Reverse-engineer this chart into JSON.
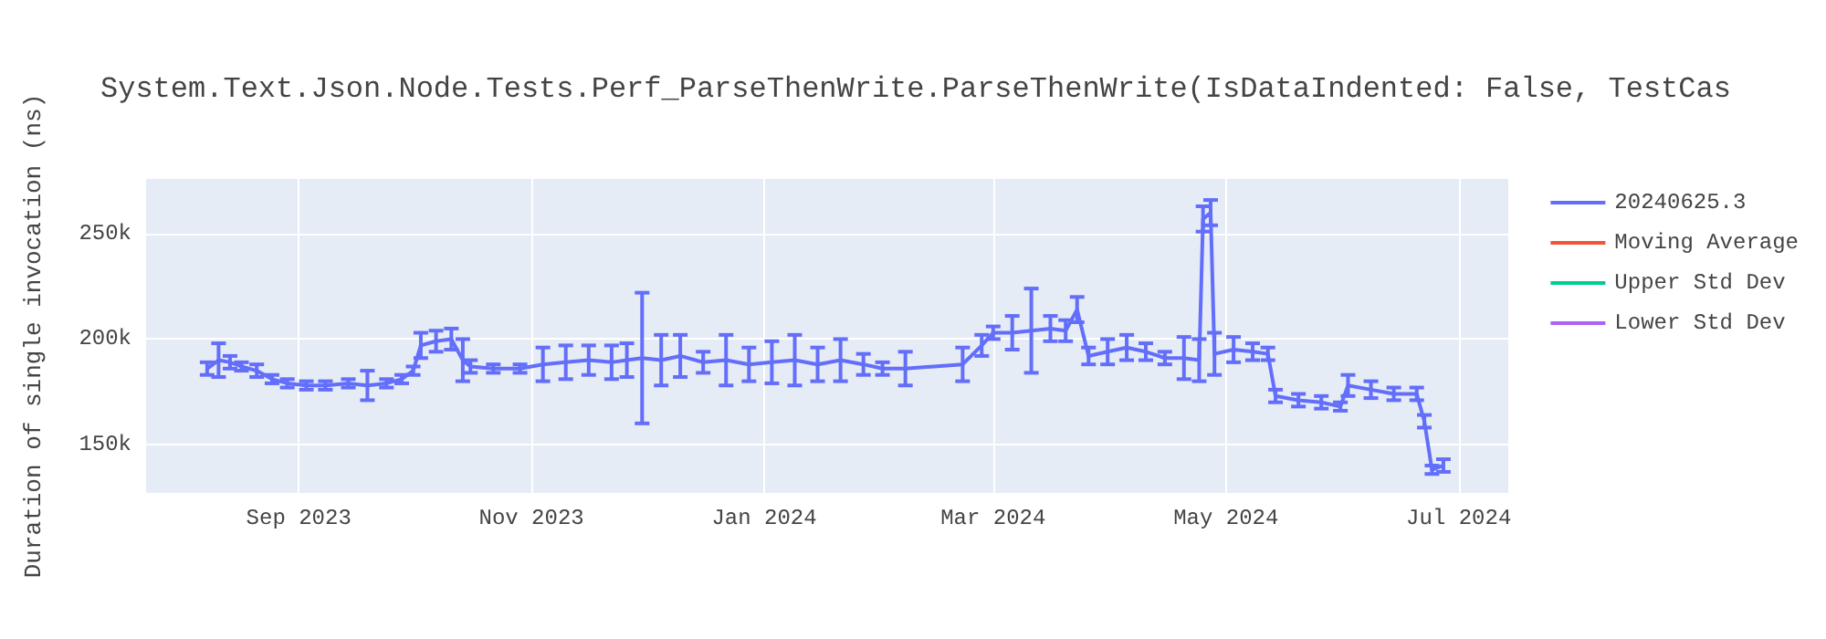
{
  "chart_data": {
    "type": "line",
    "title": "System.Text.Json.Node.Tests.Perf_ParseThenWrite.ParseThenWrite(IsDataIndented: False, TestCas",
    "ylabel": "Duration of single invocation (ns)",
    "x": [
      "2023-08-08",
      "2023-08-11",
      "2023-08-14",
      "2023-08-17",
      "2023-08-21",
      "2023-08-25",
      "2023-08-29",
      "2023-09-03",
      "2023-09-08",
      "2023-09-14",
      "2023-09-19",
      "2023-09-24",
      "2023-09-28",
      "2023-10-01",
      "2023-10-03",
      "2023-10-07",
      "2023-10-11",
      "2023-10-14",
      "2023-10-16",
      "2023-10-22",
      "2023-10-29",
      "2023-11-04",
      "2023-11-10",
      "2023-11-16",
      "2023-11-22",
      "2023-11-26",
      "2023-11-30",
      "2023-12-05",
      "2023-12-10",
      "2023-12-16",
      "2023-12-22",
      "2023-12-28",
      "2024-01-03",
      "2024-01-09",
      "2024-01-15",
      "2024-01-21",
      "2024-01-27",
      "2024-02-01",
      "2024-02-07",
      "2024-02-22",
      "2024-02-27",
      "2024-03-01",
      "2024-03-06",
      "2024-03-11",
      "2024-03-16",
      "2024-03-20",
      "2024-03-23",
      "2024-03-26",
      "2024-03-31",
      "2024-04-05",
      "2024-04-10",
      "2024-04-15",
      "2024-04-20",
      "2024-04-24",
      "2024-04-25",
      "2024-04-27",
      "2024-04-28",
      "2024-05-03",
      "2024-05-08",
      "2024-05-12",
      "2024-05-14",
      "2024-05-20",
      "2024-05-26",
      "2024-05-31",
      "2024-06-02",
      "2024-06-08",
      "2024-06-14",
      "2024-06-20",
      "2024-06-22",
      "2024-06-24",
      "2024-06-27"
    ],
    "series": [
      {
        "name": "20240625.3",
        "color": "#636efa",
        "values": [
          186000,
          190000,
          189000,
          187000,
          185000,
          181000,
          179000,
          178000,
          178000,
          179000,
          178000,
          179000,
          181000,
          185000,
          197000,
          199000,
          200000,
          190000,
          187000,
          186000,
          186000,
          188000,
          189000,
          190000,
          189000,
          190000,
          191000,
          190000,
          192000,
          189000,
          190000,
          188000,
          189000,
          190000,
          188000,
          190000,
          188000,
          186000,
          186000,
          188000,
          197000,
          203000,
          203000,
          204000,
          205000,
          204000,
          214000,
          192000,
          194000,
          196000,
          194000,
          191000,
          191000,
          190000,
          257000,
          260000,
          193000,
          195000,
          194000,
          193000,
          173000,
          171000,
          170000,
          168000,
          178000,
          176000,
          174000,
          174000,
          161000,
          138000,
          140000
        ],
        "errors": [
          3000,
          8000,
          3000,
          2000,
          3000,
          2000,
          2000,
          2000,
          2000,
          2000,
          7000,
          2000,
          2000,
          2000,
          6000,
          5000,
          5000,
          10000,
          3000,
          2000,
          2000,
          8000,
          8000,
          7000,
          8000,
          8000,
          31000,
          12000,
          10000,
          5000,
          12000,
          8000,
          10000,
          12000,
          8000,
          10000,
          5000,
          3000,
          8000,
          8000,
          5000,
          3000,
          8000,
          20000,
          6000,
          5000,
          6000,
          4000,
          6000,
          6000,
          4000,
          3000,
          10000,
          10000,
          6000,
          6000,
          10000,
          6000,
          4000,
          3000,
          3000,
          3000,
          3000,
          2000,
          5000,
          4000,
          3000,
          3000,
          3000,
          2000,
          3000
        ]
      },
      {
        "name": "Moving Average",
        "color": "#ef553b",
        "values": [
          null,
          null,
          null,
          null,
          null,
          null,
          null,
          null,
          null,
          null,
          null,
          null,
          null,
          null,
          null,
          null,
          null,
          null,
          null,
          null,
          null,
          null,
          null,
          null,
          null,
          null,
          null,
          null,
          null,
          null,
          null,
          null,
          null,
          null,
          null,
          null,
          null,
          null,
          null,
          null,
          null,
          null,
          null,
          null,
          null,
          null,
          null,
          null,
          null,
          null,
          null,
          null,
          null,
          null,
          null,
          null,
          null,
          null,
          null,
          null,
          null,
          null,
          null,
          null,
          null,
          null,
          null,
          null,
          null,
          null,
          null
        ]
      },
      {
        "name": "Upper Std Dev",
        "color": "#00cc96",
        "values": [
          null,
          null,
          null,
          null,
          null,
          null,
          null,
          null,
          null,
          null,
          null,
          null,
          null,
          null,
          null,
          null,
          null,
          null,
          null,
          null,
          null,
          null,
          null,
          null,
          null,
          null,
          null,
          null,
          null,
          null,
          null,
          null,
          null,
          null,
          null,
          null,
          null,
          null,
          null,
          null,
          null,
          null,
          null,
          null,
          null,
          null,
          null,
          null,
          null,
          null,
          null,
          null,
          null,
          null,
          null,
          null,
          null,
          null,
          null,
          null,
          null,
          null,
          null,
          null,
          null,
          null,
          null,
          null,
          null,
          null,
          null
        ]
      },
      {
        "name": "Lower Std Dev",
        "color": "#ab63fa",
        "values": [
          null,
          null,
          null,
          null,
          null,
          null,
          null,
          null,
          null,
          null,
          null,
          null,
          null,
          null,
          null,
          null,
          null,
          null,
          null,
          null,
          null,
          null,
          null,
          null,
          null,
          null,
          null,
          null,
          null,
          null,
          null,
          null,
          null,
          null,
          null,
          null,
          null,
          null,
          null,
          null,
          null,
          null,
          null,
          null,
          null,
          null,
          null,
          null,
          null,
          null,
          null,
          null,
          null,
          null,
          null,
          null,
          null,
          null,
          null,
          null,
          null,
          null,
          null,
          null,
          null,
          null,
          null,
          null,
          null,
          null,
          null
        ]
      }
    ],
    "xlim": [
      "2023-07-23",
      "2024-07-14"
    ],
    "xticks": [
      {
        "value": "2023-09-01",
        "label": "Sep 2023"
      },
      {
        "value": "2023-11-01",
        "label": "Nov 2023"
      },
      {
        "value": "2024-01-01",
        "label": "Jan 2024"
      },
      {
        "value": "2024-03-01",
        "label": "Mar 2024"
      },
      {
        "value": "2024-05-01",
        "label": "May 2024"
      },
      {
        "value": "2024-07-01",
        "label": "Jul 2024"
      }
    ],
    "ylim": [
      127000,
      276000
    ],
    "yticks": [
      {
        "value": 150000,
        "label": "150k"
      },
      {
        "value": 200000,
        "label": "200k"
      },
      {
        "value": 250000,
        "label": "250k"
      }
    ],
    "grid": true,
    "legend": "top right"
  }
}
